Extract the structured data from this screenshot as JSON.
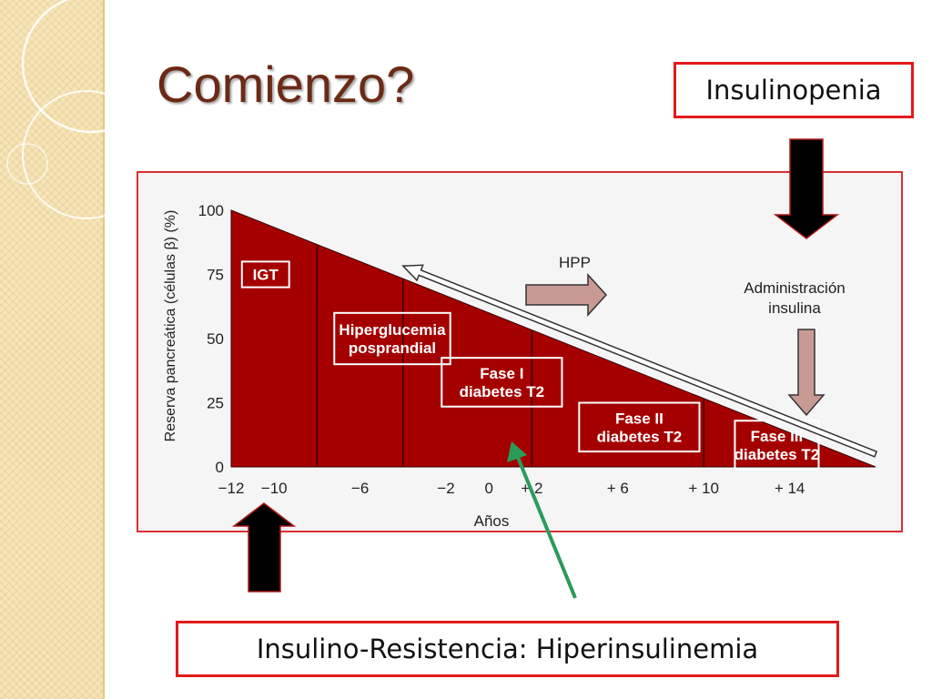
{
  "slide": {
    "title": "Comienzo?",
    "callout_top": "Insulinopenia",
    "callout_bottom": "Insulino-Resistencia: Hiperinsulinemia"
  },
  "colors": {
    "title": "#6b2a14",
    "callout_border": "#e01b1b",
    "region_fill": "#a50000",
    "phase_line": "#3a0000",
    "big_arrow": "#000000",
    "pink_arrow": "#c99a94",
    "green_arrow": "#2a9a5a",
    "strip": "#f6e5b8"
  },
  "chart_data": {
    "type": "area",
    "xlabel": "Años",
    "ylabel": "Reserva pancreática (células β) (%)",
    "xlim": [
      -12,
      18
    ],
    "ylim": [
      0,
      100
    ],
    "x_ticks": [
      "−12",
      "−10",
      "−6",
      "−2",
      "0",
      "+ 2",
      "+ 6",
      "+ 10",
      "+ 14"
    ],
    "x_tick_values": [
      -12,
      -10,
      -6,
      -2,
      0,
      2,
      6,
      10,
      14
    ],
    "y_ticks": [
      "100",
      "75",
      "50",
      "25",
      "0"
    ],
    "y_tick_values": [
      100,
      75,
      50,
      25,
      0
    ],
    "series": [
      {
        "x": [
          -12,
          18
        ],
        "y": [
          100,
          0
        ]
      }
    ],
    "phase_boundaries": [
      -8,
      -4,
      2,
      10
    ],
    "phases": [
      {
        "label_lines": [
          "IGT"
        ],
        "x_center": -10.4,
        "y_center": 75,
        "width": 2.2,
        "height": 10
      },
      {
        "label_lines": [
          "Hiperglucemia",
          "posprandial"
        ],
        "x_center": -4.5,
        "y_center": 50,
        "width": 5.4,
        "height": 20
      },
      {
        "label_lines": [
          "Fase I",
          "diabetes T2"
        ],
        "x_center": 0.6,
        "y_center": 33,
        "width": 5.6,
        "height": 19
      },
      {
        "label_lines": [
          "Fase II",
          "diabetes T2"
        ],
        "x_center": 7.0,
        "y_center": 15.5,
        "width": 5.6,
        "height": 19
      },
      {
        "label_lines": [
          "Fase III",
          "diabetes T2"
        ],
        "x_center": 13.4,
        "y_center": 8.5,
        "width": 3.9,
        "height": 19
      }
    ],
    "annotations": {
      "hpp": "HPP",
      "administracion": [
        "Administración",
        "insulina"
      ]
    }
  }
}
